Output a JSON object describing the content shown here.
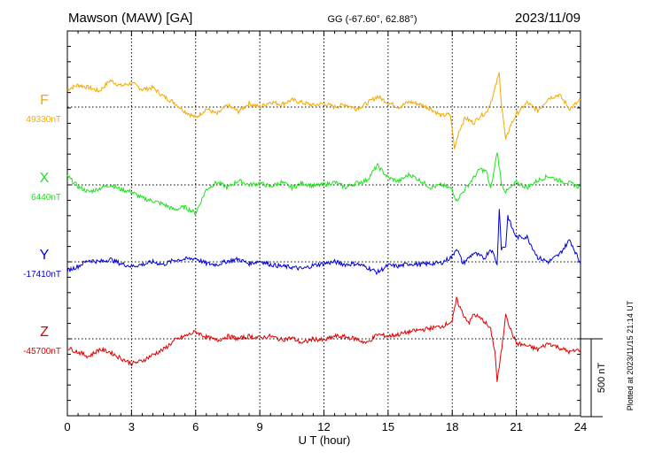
{
  "header": {
    "station": "Mawson (MAW)  [GA]",
    "coords": "GG (-67.60°,  62.88°)",
    "date": "2023/11/09"
  },
  "footer_note": "Plotted at 2023/11/15 21:14 UT",
  "chart_data": {
    "type": "line",
    "xlabel": "U T (hour)",
    "xlim": [
      0,
      24
    ],
    "xticks": [
      0,
      3,
      6,
      9,
      12,
      15,
      18,
      21,
      24
    ],
    "scale_bar": {
      "label": "500 nT",
      "value_nT": 500
    },
    "grid": true,
    "series": [
      {
        "name": "F",
        "baseline_label": "49330nT",
        "baseline_nT": 49330,
        "color": "#f5a800",
        "points": [
          [
            0,
            20
          ],
          [
            0.5,
            25
          ],
          [
            1,
            22
          ],
          [
            1.5,
            18
          ],
          [
            2,
            30
          ],
          [
            2.5,
            24
          ],
          [
            3,
            27
          ],
          [
            3.5,
            20
          ],
          [
            4,
            22
          ],
          [
            4.5,
            12
          ],
          [
            5,
            5
          ],
          [
            5.5,
            -5
          ],
          [
            6,
            -12
          ],
          [
            6.5,
            -2
          ],
          [
            7,
            -8
          ],
          [
            7.5,
            2
          ],
          [
            8,
            -5
          ],
          [
            8.5,
            4
          ],
          [
            9,
            0
          ],
          [
            9.5,
            6
          ],
          [
            10,
            3
          ],
          [
            10.5,
            8
          ],
          [
            11,
            5
          ],
          [
            11.5,
            2
          ],
          [
            12,
            4
          ],
          [
            12.5,
            0
          ],
          [
            13,
            3
          ],
          [
            13.5,
            -2
          ],
          [
            14,
            4
          ],
          [
            14.5,
            12
          ],
          [
            15,
            5
          ],
          [
            15.5,
            0
          ],
          [
            16,
            6
          ],
          [
            16.5,
            3
          ],
          [
            17,
            -2
          ],
          [
            17.5,
            -10
          ],
          [
            17.9,
            -8
          ],
          [
            18,
            -25
          ],
          [
            18.1,
            -48
          ],
          [
            18.3,
            -28
          ],
          [
            18.6,
            -12
          ],
          [
            19,
            -18
          ],
          [
            19.3,
            -10
          ],
          [
            19.6,
            -6
          ],
          [
            19.9,
            12
          ],
          [
            20.1,
            30
          ],
          [
            20.2,
            38
          ],
          [
            20.3,
            5
          ],
          [
            20.5,
            -38
          ],
          [
            20.7,
            -22
          ],
          [
            21,
            -8
          ],
          [
            21.5,
            5
          ],
          [
            22,
            -4
          ],
          [
            22.5,
            10
          ],
          [
            23,
            14
          ],
          [
            23.5,
            -2
          ],
          [
            24,
            8
          ]
        ]
      },
      {
        "name": "X",
        "baseline_label": "6440nT",
        "baseline_nT": 6440,
        "color": "#22e022",
        "points": [
          [
            0,
            10
          ],
          [
            0.5,
            -2
          ],
          [
            1,
            -8
          ],
          [
            1.5,
            -4
          ],
          [
            2,
            0
          ],
          [
            2.5,
            -5
          ],
          [
            3,
            -8
          ],
          [
            3.5,
            -15
          ],
          [
            4,
            -18
          ],
          [
            4.5,
            -22
          ],
          [
            5,
            -28
          ],
          [
            5.5,
            -25
          ],
          [
            6,
            -32
          ],
          [
            6.5,
            -5
          ],
          [
            7,
            3
          ],
          [
            7.5,
            -3
          ],
          [
            8,
            5
          ],
          [
            8.5,
            0
          ],
          [
            9,
            2
          ],
          [
            9.5,
            -2
          ],
          [
            10,
            3
          ],
          [
            10.5,
            -3
          ],
          [
            11,
            2
          ],
          [
            11.5,
            -1
          ],
          [
            12,
            0
          ],
          [
            12.5,
            3
          ],
          [
            13,
            -3
          ],
          [
            13.5,
            2
          ],
          [
            14,
            5
          ],
          [
            14.5,
            22
          ],
          [
            15,
            8
          ],
          [
            15.5,
            4
          ],
          [
            16,
            12
          ],
          [
            16.5,
            5
          ],
          [
            17,
            -3
          ],
          [
            17.5,
            0
          ],
          [
            18,
            -5
          ],
          [
            18.2,
            -18
          ],
          [
            18.5,
            -8
          ],
          [
            19,
            8
          ],
          [
            19.3,
            18
          ],
          [
            19.6,
            15
          ],
          [
            19.8,
            -5
          ],
          [
            20,
            22
          ],
          [
            20.1,
            38
          ],
          [
            20.3,
            2
          ],
          [
            20.5,
            -8
          ],
          [
            20.8,
            -2
          ],
          [
            21,
            3
          ],
          [
            21.5,
            -3
          ],
          [
            22,
            5
          ],
          [
            22.5,
            10
          ],
          [
            23,
            5
          ],
          [
            23.5,
            2
          ],
          [
            24,
            -3
          ]
        ]
      },
      {
        "name": "Y",
        "baseline_label": "-17410nT",
        "baseline_nT": -17410,
        "color": "#0000e0",
        "points": [
          [
            0,
            -10
          ],
          [
            0.5,
            -5
          ],
          [
            1,
            2
          ],
          [
            1.5,
            0
          ],
          [
            2,
            3
          ],
          [
            2.5,
            -2
          ],
          [
            3,
            -5
          ],
          [
            3.5,
            -3
          ],
          [
            4,
            0
          ],
          [
            4.5,
            -3
          ],
          [
            5,
            2
          ],
          [
            5.5,
            3
          ],
          [
            6,
            4
          ],
          [
            6.5,
            -2
          ],
          [
            7,
            -3
          ],
          [
            7.5,
            1
          ],
          [
            8,
            3
          ],
          [
            8.5,
            -2
          ],
          [
            9,
            1
          ],
          [
            9.5,
            -3
          ],
          [
            10,
            -5
          ],
          [
            10.5,
            -6
          ],
          [
            11,
            -8
          ],
          [
            11.5,
            -4
          ],
          [
            12,
            -2
          ],
          [
            12.5,
            0
          ],
          [
            13,
            -3
          ],
          [
            13.5,
            -2
          ],
          [
            14,
            -6
          ],
          [
            14.5,
            -12
          ],
          [
            15,
            -4
          ],
          [
            15.5,
            -5
          ],
          [
            16,
            -2
          ],
          [
            16.5,
            -3
          ],
          [
            17,
            -2
          ],
          [
            17.5,
            -1
          ],
          [
            18,
            6
          ],
          [
            18.2,
            16
          ],
          [
            18.5,
            -2
          ],
          [
            19,
            10
          ],
          [
            19.5,
            4
          ],
          [
            19.8,
            15
          ],
          [
            20,
            5
          ],
          [
            20.1,
            -4
          ],
          [
            20.2,
            62
          ],
          [
            20.3,
            15
          ],
          [
            20.5,
            18
          ],
          [
            20.6,
            52
          ],
          [
            20.8,
            38
          ],
          [
            21,
            28
          ],
          [
            21.5,
            28
          ],
          [
            22,
            5
          ],
          [
            22.5,
            0
          ],
          [
            23,
            8
          ],
          [
            23.5,
            25
          ],
          [
            24,
            -2
          ]
        ]
      },
      {
        "name": "Z",
        "baseline_label": "-45700nT",
        "baseline_nT": -45700,
        "color": "#e00000",
        "points": [
          [
            0,
            -10
          ],
          [
            0.5,
            -15
          ],
          [
            1,
            -20
          ],
          [
            1.5,
            -12
          ],
          [
            2,
            -15
          ],
          [
            2.5,
            -22
          ],
          [
            3,
            -28
          ],
          [
            3.5,
            -25
          ],
          [
            4,
            -18
          ],
          [
            4.5,
            -12
          ],
          [
            5,
            -2
          ],
          [
            5.5,
            3
          ],
          [
            6,
            8
          ],
          [
            6.5,
            2
          ],
          [
            7,
            -2
          ],
          [
            7.5,
            3
          ],
          [
            8,
            0
          ],
          [
            8.5,
            3
          ],
          [
            9,
            1
          ],
          [
            9.5,
            3
          ],
          [
            10,
            -1
          ],
          [
            10.5,
            1
          ],
          [
            11,
            -5
          ],
          [
            11.5,
            0
          ],
          [
            12,
            -2
          ],
          [
            12.5,
            3
          ],
          [
            13,
            2
          ],
          [
            13.5,
            0
          ],
          [
            14,
            -5
          ],
          [
            14.5,
            5
          ],
          [
            15,
            3
          ],
          [
            15.5,
            5
          ],
          [
            16,
            8
          ],
          [
            16.5,
            10
          ],
          [
            17,
            12
          ],
          [
            17.5,
            14
          ],
          [
            18,
            20
          ],
          [
            18.2,
            45
          ],
          [
            18.5,
            28
          ],
          [
            18.8,
            18
          ],
          [
            19,
            28
          ],
          [
            19.5,
            20
          ],
          [
            19.8,
            10
          ],
          [
            20,
            -15
          ],
          [
            20.1,
            -48
          ],
          [
            20.2,
            -32
          ],
          [
            20.4,
            5
          ],
          [
            20.5,
            30
          ],
          [
            20.7,
            12
          ],
          [
            21,
            -5
          ],
          [
            21.5,
            -8
          ],
          [
            22,
            -12
          ],
          [
            22.5,
            -5
          ],
          [
            23,
            -10
          ],
          [
            23.5,
            -15
          ],
          [
            24,
            -12
          ]
        ]
      }
    ]
  }
}
